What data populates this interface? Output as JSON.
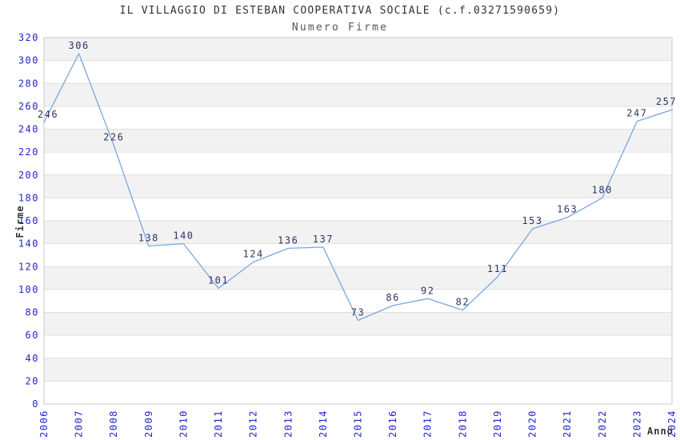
{
  "chart_data": {
    "type": "line",
    "title": "IL VILLAGGIO DI ESTEBAN COOPERATIVA SOCIALE (c.f.03271590659)",
    "subtitle": "Numero Firme",
    "xlabel": "Anno",
    "ylabel": "Firme",
    "x": [
      "2006",
      "2007",
      "2008",
      "2009",
      "2010",
      "2011",
      "2012",
      "2013",
      "2014",
      "2015",
      "2016",
      "2017",
      "2018",
      "2019",
      "2020",
      "2021",
      "2022",
      "2023",
      "2024"
    ],
    "series": [
      {
        "name": "Numero Firme",
        "values": [
          246,
          306,
          226,
          138,
          140,
          101,
          124,
          136,
          137,
          73,
          86,
          92,
          82,
          111,
          153,
          163,
          180,
          247,
          257
        ]
      }
    ],
    "ylim": [
      0,
      320
    ],
    "ytick_step": 20,
    "yticks": [
      0,
      20,
      40,
      60,
      80,
      100,
      120,
      140,
      160,
      180,
      200,
      220,
      240,
      260,
      280,
      300,
      320
    ],
    "grid": "horizontal-stripes-alternating",
    "legend": "none",
    "data_labels_visible": true,
    "colors": {
      "line": "#79a8de",
      "tick_label": "#2424cc",
      "data_label": "#333366",
      "stripe_fill": "#f2f2f2",
      "gridline": "#e0e0e0",
      "plot_border": "#c8c8c8",
      "title": "#333333",
      "subtitle": "#555555",
      "axis_title": "#333333",
      "background": "#ffffff"
    }
  }
}
